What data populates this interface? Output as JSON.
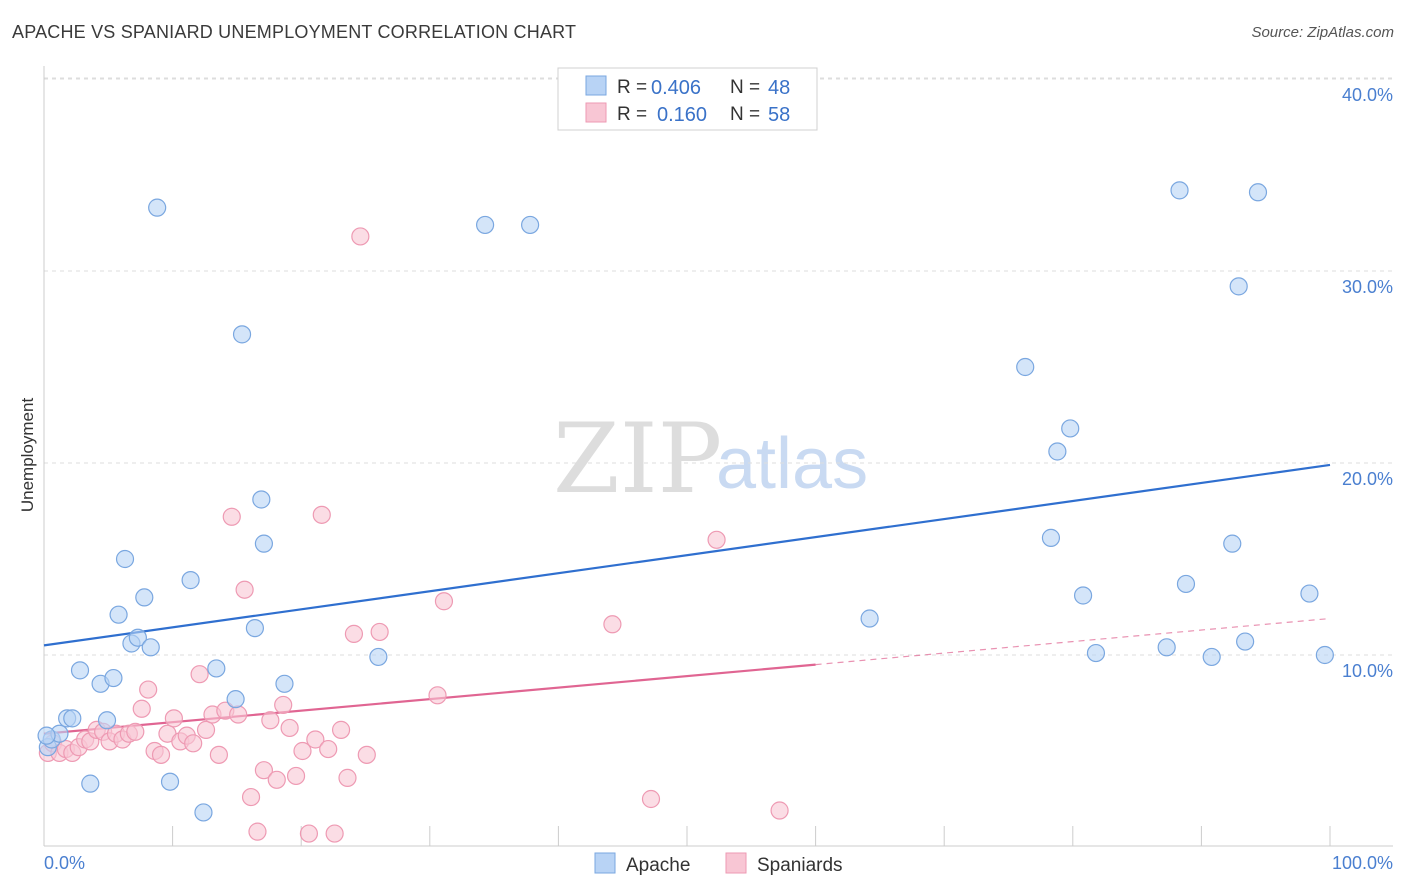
{
  "title": "APACHE VS SPANIARD UNEMPLOYMENT CORRELATION CHART",
  "source": "Source: ZipAtlas.com",
  "watermark": {
    "zip": "ZIP",
    "atlas": "atlas"
  },
  "colors": {
    "apache_fill": "#b8d3f5",
    "apache_stroke": "#7aa7e0",
    "apache_line": "#2f6fcf",
    "spaniards_fill": "#f8c6d4",
    "spaniards_stroke": "#ee9ab3",
    "spaniards_line": "#e06592",
    "axis_text": "#4a7fd0",
    "grid": "#dddddd"
  },
  "legend": {
    "rows": [
      {
        "r_label": "R =",
        "r_value": "0.406",
        "n_label": "N =",
        "n_value": "48"
      },
      {
        "r_label": "R =",
        "r_value": "0.160",
        "n_label": "N =",
        "n_value": "58"
      }
    ]
  },
  "bottom_legend": [
    "Apache",
    "Spaniards"
  ],
  "chart_data": {
    "type": "scatter",
    "title": "APACHE VS SPANIARD UNEMPLOYMENT CORRELATION CHART",
    "xlabel": "",
    "ylabel": "Unemployment",
    "xlim": [
      0,
      100
    ],
    "ylim": [
      0,
      40
    ],
    "x_tick_labels": [
      "0.0%",
      "100.0%"
    ],
    "y_ticks": [
      10,
      20,
      30,
      40
    ],
    "y_tick_labels": [
      "10.0%",
      "20.0%",
      "30.0%",
      "40.0%"
    ],
    "grid": true,
    "series": [
      {
        "name": "Apache",
        "r": 0.406,
        "n": 48,
        "trend": {
          "x0": 0,
          "y0": 10.5,
          "x1": 100,
          "y1": 19.9
        },
        "points": [
          [
            0.3,
            5.2
          ],
          [
            0.6,
            5.6
          ],
          [
            1.2,
            5.9
          ],
          [
            1.8,
            6.7
          ],
          [
            2.2,
            6.7
          ],
          [
            2.8,
            9.2
          ],
          [
            3.6,
            3.3
          ],
          [
            4.4,
            8.5
          ],
          [
            4.9,
            6.6
          ],
          [
            5.4,
            8.8
          ],
          [
            5.8,
            12.1
          ],
          [
            6.3,
            15.0
          ],
          [
            6.8,
            10.6
          ],
          [
            7.3,
            10.9
          ],
          [
            7.8,
            13.0
          ],
          [
            8.3,
            10.4
          ],
          [
            8.8,
            33.3
          ],
          [
            9.8,
            3.4
          ],
          [
            11.4,
            13.9
          ],
          [
            12.4,
            1.8
          ],
          [
            13.4,
            9.3
          ],
          [
            14.9,
            7.7
          ],
          [
            15.4,
            26.7
          ],
          [
            16.4,
            11.4
          ],
          [
            16.9,
            18.1
          ],
          [
            17.1,
            15.8
          ],
          [
            18.7,
            8.5
          ],
          [
            26.0,
            9.9
          ],
          [
            34.3,
            32.4
          ],
          [
            37.8,
            32.4
          ],
          [
            64.2,
            11.9
          ],
          [
            76.3,
            25.0
          ],
          [
            78.3,
            16.1
          ],
          [
            78.8,
            20.6
          ],
          [
            79.8,
            21.8
          ],
          [
            80.8,
            13.1
          ],
          [
            81.8,
            10.1
          ],
          [
            87.3,
            10.4
          ],
          [
            88.3,
            34.2
          ],
          [
            88.8,
            13.7
          ],
          [
            90.8,
            9.9
          ],
          [
            92.4,
            15.8
          ],
          [
            92.9,
            29.2
          ],
          [
            93.4,
            10.7
          ],
          [
            94.4,
            34.1
          ],
          [
            98.4,
            13.2
          ],
          [
            99.6,
            10.0
          ],
          [
            0.2,
            5.8
          ]
        ]
      },
      {
        "name": "Spaniards",
        "r": 0.16,
        "n": 58,
        "trend": {
          "x0": 0,
          "y0": 5.9,
          "x1": 60,
          "y1": 9.5
        },
        "trend_dashed": {
          "x0": 60,
          "y0": 9.5,
          "x1": 100,
          "y1": 11.9
        },
        "points": [
          [
            0.3,
            4.9
          ],
          [
            0.7,
            5.4
          ],
          [
            1.2,
            4.9
          ],
          [
            1.7,
            5.1
          ],
          [
            2.2,
            4.9
          ],
          [
            2.7,
            5.2
          ],
          [
            3.2,
            5.6
          ],
          [
            3.6,
            5.5
          ],
          [
            4.1,
            6.1
          ],
          [
            4.6,
            6.0
          ],
          [
            5.1,
            5.5
          ],
          [
            5.6,
            5.9
          ],
          [
            6.1,
            5.6
          ],
          [
            6.6,
            5.9
          ],
          [
            7.1,
            6.0
          ],
          [
            7.6,
            7.2
          ],
          [
            8.1,
            8.2
          ],
          [
            8.6,
            5.0
          ],
          [
            9.1,
            4.8
          ],
          [
            9.6,
            5.9
          ],
          [
            10.1,
            6.7
          ],
          [
            10.6,
            5.5
          ],
          [
            11.1,
            5.8
          ],
          [
            11.6,
            5.4
          ],
          [
            12.1,
            9.0
          ],
          [
            12.6,
            6.1
          ],
          [
            13.1,
            6.9
          ],
          [
            13.6,
            4.8
          ],
          [
            14.1,
            7.1
          ],
          [
            14.6,
            17.2
          ],
          [
            15.1,
            6.9
          ],
          [
            15.6,
            13.4
          ],
          [
            16.1,
            2.6
          ],
          [
            16.6,
            0.8
          ],
          [
            17.1,
            4.0
          ],
          [
            17.6,
            6.6
          ],
          [
            18.1,
            3.5
          ],
          [
            18.6,
            7.4
          ],
          [
            19.1,
            6.2
          ],
          [
            19.6,
            3.7
          ],
          [
            20.1,
            5.0
          ],
          [
            20.6,
            0.7
          ],
          [
            21.1,
            5.6
          ],
          [
            21.6,
            17.3
          ],
          [
            22.1,
            5.1
          ],
          [
            22.6,
            0.7
          ],
          [
            23.1,
            6.1
          ],
          [
            23.6,
            3.6
          ],
          [
            24.1,
            11.1
          ],
          [
            24.6,
            31.8
          ],
          [
            25.1,
            4.8
          ],
          [
            26.1,
            11.2
          ],
          [
            31.1,
            12.8
          ],
          [
            30.6,
            7.9
          ],
          [
            44.2,
            11.6
          ],
          [
            52.3,
            16.0
          ],
          [
            47.2,
            2.5
          ],
          [
            57.2,
            1.9
          ]
        ]
      }
    ]
  }
}
